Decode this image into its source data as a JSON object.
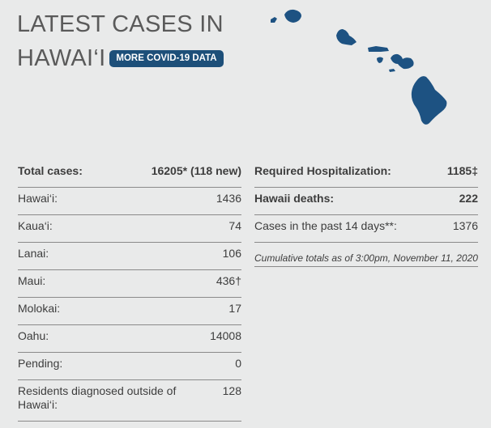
{
  "header": {
    "title_line1": "LATEST CASES IN",
    "title_line2": "HAWAI‘I",
    "button": "MORE COVID-19 DATA"
  },
  "left_table": {
    "rows": [
      {
        "label": "Total cases:",
        "value": "16205* (118 new)"
      },
      {
        "label": "Hawai‘i:",
        "value": "1436"
      },
      {
        "label": "Kaua‘i:",
        "value": "74"
      },
      {
        "label": "Lanai:",
        "value": "106"
      },
      {
        "label": "Maui:",
        "value": "436†"
      },
      {
        "label": "Molokai:",
        "value": "17"
      },
      {
        "label": "Oahu:",
        "value": "14008"
      },
      {
        "label": "Pending:",
        "value": "0"
      },
      {
        "label": "Residents diagnosed outside of Hawai‘i:",
        "value": "128"
      }
    ]
  },
  "right_table": {
    "rows": [
      {
        "label": "Required Hospitalization:",
        "value": "1185‡"
      },
      {
        "label": "Hawaii deaths:",
        "value": "222"
      },
      {
        "label": "Cases in the past 14 days**:",
        "value": "1376"
      }
    ],
    "note": "Cumulative totals as of 3:00pm, November 11, 2020"
  }
}
